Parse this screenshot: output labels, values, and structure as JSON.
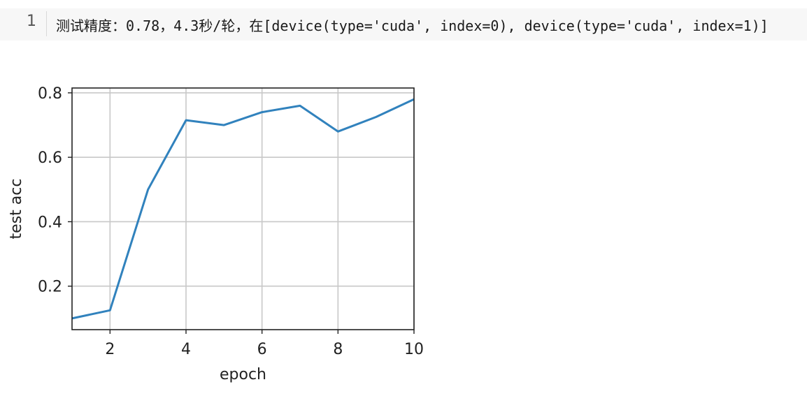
{
  "output": {
    "line_number": "1",
    "text": "测试精度：0.78，4.3秒/轮，在[device(type='cuda', index=0), device(type='cuda', index=1)]"
  },
  "chart_data": {
    "type": "line",
    "xlabel": "epoch",
    "ylabel": "test acc",
    "xlim": [
      1,
      10
    ],
    "ylim": [
      0.065,
      0.815
    ],
    "xticks": [
      2,
      4,
      6,
      8,
      10
    ],
    "yticks": [
      0.2,
      0.4,
      0.6,
      0.8
    ],
    "xtick_labels": [
      "2",
      "4",
      "6",
      "8",
      "10"
    ],
    "ytick_labels": [
      "0.2",
      "0.4",
      "0.6",
      "0.8"
    ],
    "grid": true,
    "series": [
      {
        "color": "#3182bd",
        "x": [
          1,
          2,
          3,
          4,
          5,
          6,
          7,
          8,
          9,
          10
        ],
        "y": [
          0.1,
          0.125,
          0.5,
          0.715,
          0.7,
          0.74,
          0.76,
          0.68,
          0.725,
          0.78
        ]
      }
    ]
  }
}
